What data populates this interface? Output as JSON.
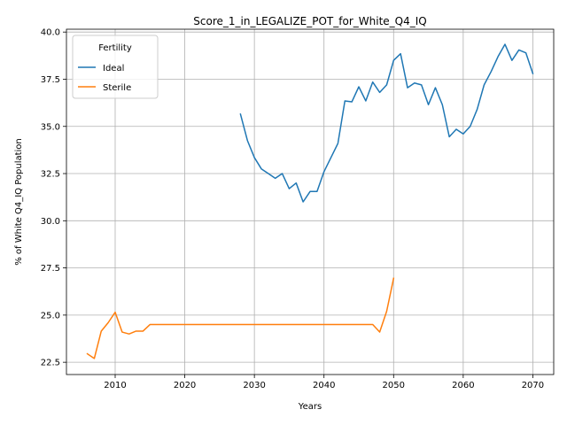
{
  "chart_data": {
    "type": "line",
    "title": "Score_1_in_LEGALIZE_POT_for_White_Q4_IQ",
    "xlabel": "Years",
    "ylabel": "% of White Q4_IQ Population",
    "xlim": [
      2003,
      2073
    ],
    "ylim": [
      21.85,
      40.15
    ],
    "xticks": [
      2010,
      2020,
      2030,
      2040,
      2050,
      2060,
      2070
    ],
    "yticks": [
      22.5,
      25.0,
      27.5,
      30.0,
      32.5,
      35.0,
      37.5,
      40.0
    ],
    "xtick_labels": [
      "2010",
      "2020",
      "2030",
      "2040",
      "2050",
      "2060",
      "2070"
    ],
    "ytick_labels": [
      "22.5",
      "25.0",
      "27.5",
      "30.0",
      "32.5",
      "35.0",
      "37.5",
      "40.0"
    ],
    "grid": true,
    "legend": {
      "title": "Fertility",
      "position": "top-left"
    },
    "series": [
      {
        "name": "Ideal",
        "color": "#1f77b4",
        "x": [
          2028,
          2029,
          2030,
          2031,
          2032,
          2033,
          2034,
          2035,
          2036,
          2037,
          2038,
          2039,
          2040,
          2041,
          2042,
          2043,
          2044,
          2045,
          2046,
          2047,
          2048,
          2049,
          2050,
          2051,
          2052,
          2053,
          2054,
          2055,
          2056,
          2057,
          2058,
          2059,
          2060,
          2061,
          2062,
          2063,
          2064,
          2065,
          2066,
          2067,
          2068,
          2069,
          2070
        ],
        "y": [
          35.65,
          34.25,
          33.35,
          32.75,
          32.5,
          32.25,
          32.5,
          31.7,
          32.0,
          31.0,
          31.55,
          31.55,
          32.6,
          33.35,
          34.1,
          36.35,
          36.3,
          37.1,
          36.35,
          37.35,
          36.8,
          37.2,
          38.5,
          38.85,
          37.05,
          37.3,
          37.2,
          36.15,
          37.05,
          36.15,
          34.45,
          34.85,
          34.6,
          35.0,
          35.9,
          37.2,
          37.9,
          38.7,
          39.35,
          38.5,
          39.05,
          38.9,
          37.8
        ]
      },
      {
        "name": "Sterile",
        "color": "#ff7f0e",
        "x": [
          2006,
          2007,
          2008,
          2009,
          2010,
          2011,
          2012,
          2013,
          2014,
          2015,
          2016,
          2017,
          2018,
          2019,
          2020,
          2021,
          2022,
          2023,
          2024,
          2025,
          2026,
          2027,
          2028,
          2029,
          2030,
          2031,
          2032,
          2033,
          2034,
          2035,
          2036,
          2037,
          2038,
          2039,
          2040,
          2041,
          2042,
          2043,
          2044,
          2045,
          2046,
          2047,
          2048,
          2049,
          2050
        ],
        "y": [
          22.95,
          22.7,
          24.15,
          24.6,
          25.15,
          24.1,
          24.0,
          24.15,
          24.15,
          24.5,
          24.5,
          24.5,
          24.5,
          24.5,
          24.5,
          24.5,
          24.5,
          24.5,
          24.5,
          24.5,
          24.5,
          24.5,
          24.5,
          24.5,
          24.5,
          24.5,
          24.5,
          24.5,
          24.5,
          24.5,
          24.5,
          24.5,
          24.5,
          24.5,
          24.5,
          24.5,
          24.5,
          24.5,
          24.5,
          24.5,
          24.5,
          24.5,
          24.1,
          25.2,
          26.95
        ]
      }
    ]
  }
}
